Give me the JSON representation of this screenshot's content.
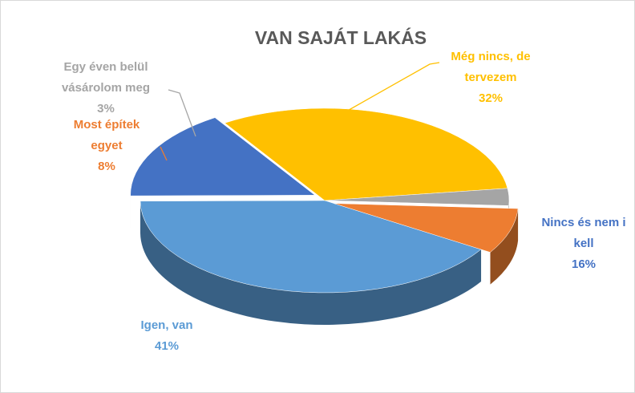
{
  "chart_data": {
    "type": "pie",
    "title": "VAN SAJÁT LAKÁS",
    "categories": [
      "Igen, van",
      "Nincs és nem i\nkell",
      "Még nincs, de\ntervezem",
      "Egy éven belül\nvásárolom meg",
      "Most építek\negyet"
    ],
    "values": [
      41,
      16,
      32,
      3,
      8
    ],
    "value_labels": [
      "41%",
      "16%",
      "32%",
      "3%",
      "8%"
    ],
    "colors": [
      "#5b9bd5",
      "#4472c4",
      "#ffc000",
      "#a5a5a5",
      "#ed7d31"
    ]
  }
}
